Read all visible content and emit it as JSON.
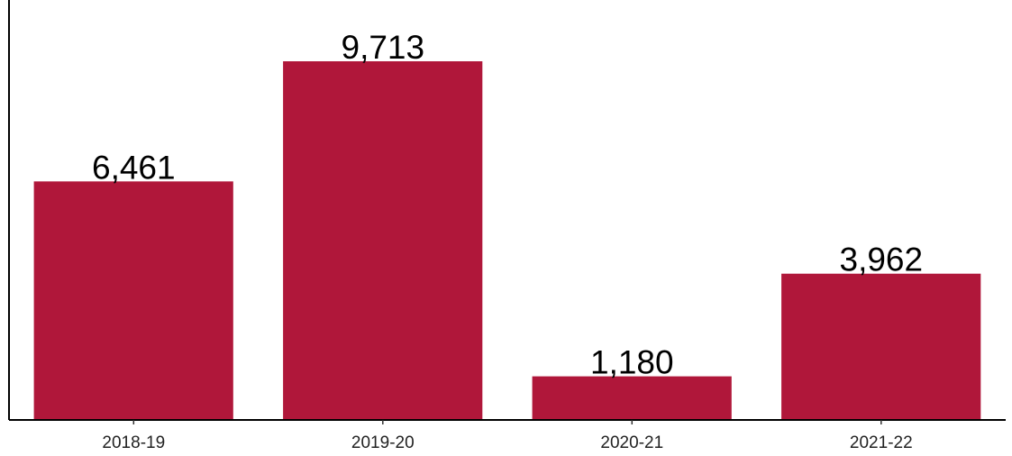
{
  "chart_data": {
    "type": "bar",
    "categories": [
      "2018-19",
      "2019-20",
      "2020-21",
      "2021-22"
    ],
    "values": [
      6461,
      9713,
      1180,
      3962
    ],
    "data_labels": [
      "6,461",
      "9,713",
      "1,180",
      "3,962"
    ],
    "ylim": [
      0,
      10600
    ],
    "grid": false,
    "bar_color": "#B0173A",
    "show_y_ticks": false
  }
}
